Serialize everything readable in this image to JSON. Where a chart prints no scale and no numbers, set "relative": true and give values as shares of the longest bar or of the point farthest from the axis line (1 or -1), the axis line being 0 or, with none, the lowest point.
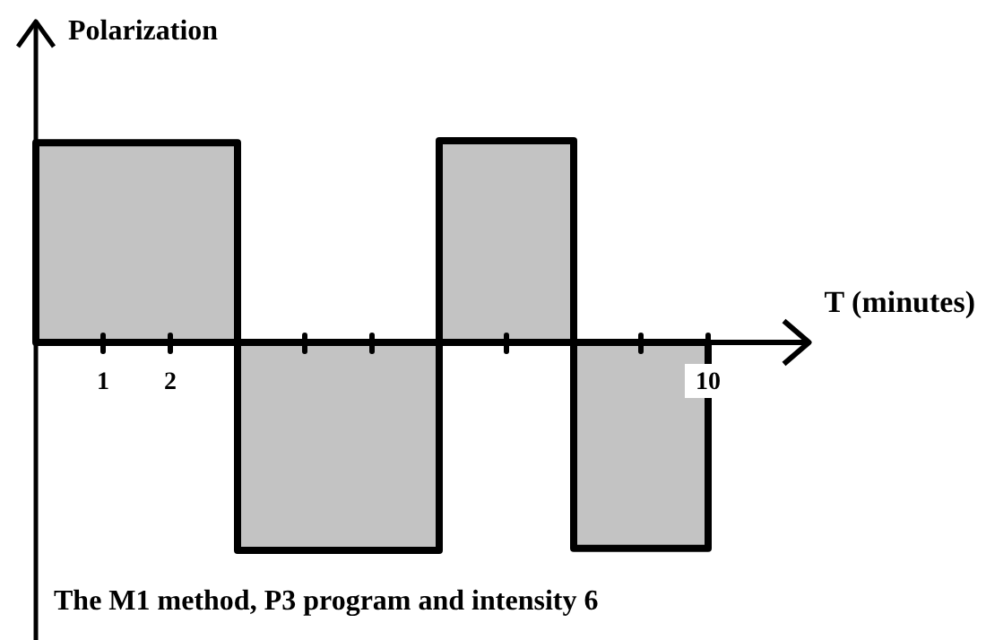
{
  "chart_data": {
    "type": "area",
    "ylabel": "Polarization",
    "xlabel": "T (minutes)",
    "relative": true,
    "x": [
      0,
      3,
      3,
      6,
      6,
      8,
      8,
      10
    ],
    "series": [
      {
        "color": "#c3c3c3",
        "values": [
          0.96,
          0.96,
          -1,
          -1,
          0.97,
          0.97,
          -0.99,
          -0.99
        ]
      }
    ],
    "xlim": [
      0,
      11.5
    ],
    "xticks": [
      1,
      2,
      {
        "value": 4,
        "label": null
      },
      {
        "value": 5,
        "label": null
      },
      {
        "value": 7,
        "label": null
      },
      {
        "value": 9,
        "label": null
      },
      10
    ],
    "tick_labels": "x",
    "grid": false,
    "annotations": [
      "The M1 method, P3 program and intensity 6"
    ]
  }
}
